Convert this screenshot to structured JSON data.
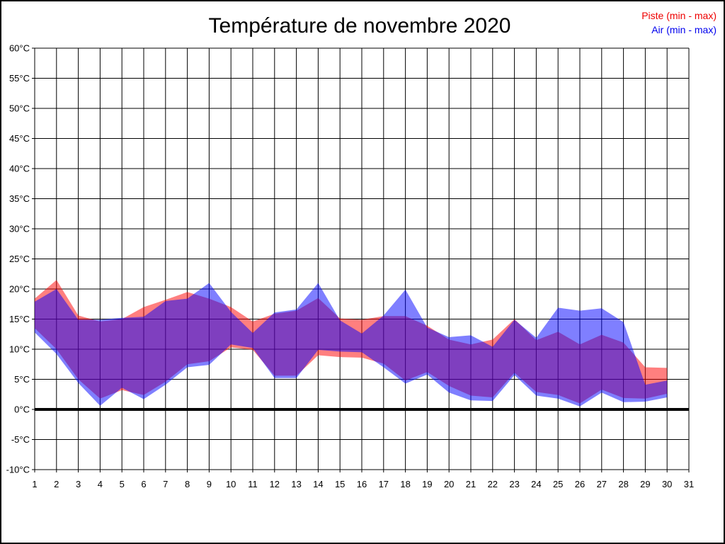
{
  "chart_data": {
    "type": "area",
    "title": "Température de novembre 2020",
    "legend": [
      {
        "label": "Piste (min - max)",
        "color": "#ee0000"
      },
      {
        "label": "Air (min - max)",
        "color": "#0000ee"
      }
    ],
    "legend_position": "top-right",
    "grid": true,
    "x": [
      1,
      2,
      3,
      4,
      5,
      6,
      7,
      8,
      9,
      10,
      11,
      12,
      13,
      14,
      15,
      16,
      17,
      18,
      19,
      20,
      21,
      22,
      23,
      24,
      25,
      26,
      27,
      28,
      29,
      30
    ],
    "x_ticks": [
      1,
      2,
      3,
      4,
      5,
      6,
      7,
      8,
      9,
      10,
      11,
      12,
      13,
      14,
      15,
      16,
      17,
      18,
      19,
      20,
      21,
      22,
      23,
      24,
      25,
      26,
      27,
      28,
      29,
      30,
      31
    ],
    "y_axis": {
      "min": -10,
      "max": 60,
      "step": 5,
      "unit": "°C",
      "zero_line": 0
    },
    "series": [
      {
        "name": "Piste",
        "band": "min-max",
        "color": "#ff0000",
        "opacity": 0.5,
        "min": [
          13.5,
          10.0,
          5.0,
          1.8,
          3.2,
          2.4,
          4.6,
          7.5,
          8.0,
          10.3,
          9.9,
          5.6,
          5.6,
          9.0,
          8.7,
          8.6,
          7.6,
          4.8,
          6.2,
          3.9,
          2.3,
          2.0,
          6.1,
          2.9,
          2.4,
          1.0,
          3.3,
          1.9,
          1.8,
          2.6
        ],
        "max": [
          18.4,
          21.5,
          15.6,
          14.6,
          15.0,
          17.0,
          18.2,
          19.5,
          18.4,
          17.0,
          14.6,
          15.9,
          16.4,
          18.5,
          15.1,
          14.9,
          15.5,
          15.5,
          13.9,
          11.6,
          10.8,
          11.6,
          15.0,
          11.5,
          12.9,
          10.8,
          12.4,
          11.1,
          7.0,
          6.9
        ]
      },
      {
        "name": "Air",
        "band": "min-max",
        "color": "#0000ff",
        "opacity": 0.5,
        "min": [
          12.8,
          9.2,
          4.4,
          0.6,
          3.6,
          1.7,
          4.1,
          7.0,
          7.4,
          10.8,
          10.2,
          5.2,
          5.2,
          9.9,
          9.6,
          9.5,
          7.0,
          4.3,
          5.8,
          2.8,
          1.5,
          1.4,
          5.7,
          2.3,
          1.8,
          0.5,
          2.8,
          1.2,
          1.3,
          2.0
        ],
        "max": [
          17.9,
          20.0,
          14.9,
          14.9,
          15.2,
          15.4,
          18.0,
          18.4,
          21.0,
          16.2,
          12.7,
          16.1,
          16.6,
          21.0,
          14.8,
          12.6,
          15.6,
          19.9,
          13.6,
          12.0,
          12.3,
          10.4,
          14.9,
          11.9,
          16.9,
          16.4,
          16.8,
          14.5,
          4.1,
          4.8
        ]
      }
    ]
  }
}
